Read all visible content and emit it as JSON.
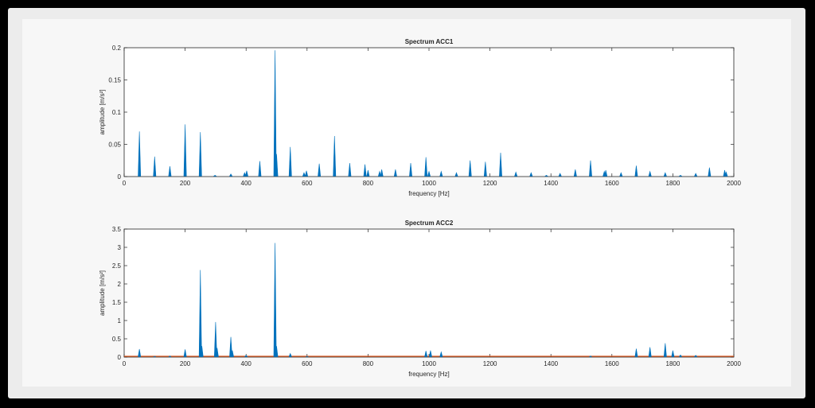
{
  "chart_data": [
    {
      "type": "line",
      "title": "Spectrum ACC1",
      "xlabel": "frequency [Hz]",
      "ylabel": "amplitude [m/s²]",
      "xlim": [
        0,
        2000
      ],
      "ylim": [
        0,
        0.2
      ],
      "xticks": [
        0,
        200,
        400,
        600,
        800,
        1000,
        1200,
        1400,
        1600,
        1800,
        2000
      ],
      "xtick_labels": [
        "0",
        "200",
        "400",
        "600",
        "800",
        "1000",
        "1200",
        "1400",
        "1600",
        "1800",
        "2000"
      ],
      "yticks": [
        0,
        0.05,
        0.1,
        0.15,
        0.2
      ],
      "ytick_labels": [
        "0",
        "0.05",
        "0.1",
        "0.15",
        "0.2"
      ],
      "grid": false,
      "series_color": "#0072bd",
      "peaks": [
        {
          "x": 50,
          "y": 0.07
        },
        {
          "x": 100,
          "y": 0.031
        },
        {
          "x": 150,
          "y": 0.016
        },
        {
          "x": 200,
          "y": 0.081
        },
        {
          "x": 250,
          "y": 0.069
        },
        {
          "x": 298,
          "y": 0.002
        },
        {
          "x": 350,
          "y": 0.004
        },
        {
          "x": 395,
          "y": 0.006
        },
        {
          "x": 402,
          "y": 0.009
        },
        {
          "x": 445,
          "y": 0.024
        },
        {
          "x": 495,
          "y": 0.196
        },
        {
          "x": 500,
          "y": 0.035
        },
        {
          "x": 545,
          "y": 0.046
        },
        {
          "x": 590,
          "y": 0.006
        },
        {
          "x": 598,
          "y": 0.009
        },
        {
          "x": 640,
          "y": 0.02
        },
        {
          "x": 690,
          "y": 0.063
        },
        {
          "x": 740,
          "y": 0.021
        },
        {
          "x": 790,
          "y": 0.019
        },
        {
          "x": 800,
          "y": 0.01
        },
        {
          "x": 838,
          "y": 0.008
        },
        {
          "x": 845,
          "y": 0.011
        },
        {
          "x": 890,
          "y": 0.011
        },
        {
          "x": 940,
          "y": 0.021
        },
        {
          "x": 990,
          "y": 0.03
        },
        {
          "x": 1000,
          "y": 0.008
        },
        {
          "x": 1040,
          "y": 0.008
        },
        {
          "x": 1090,
          "y": 0.006
        },
        {
          "x": 1135,
          "y": 0.025
        },
        {
          "x": 1185,
          "y": 0.023
        },
        {
          "x": 1235,
          "y": 0.037
        },
        {
          "x": 1285,
          "y": 0.007
        },
        {
          "x": 1335,
          "y": 0.006
        },
        {
          "x": 1385,
          "y": 0.002
        },
        {
          "x": 1430,
          "y": 0.005
        },
        {
          "x": 1480,
          "y": 0.011
        },
        {
          "x": 1530,
          "y": 0.025
        },
        {
          "x": 1575,
          "y": 0.008
        },
        {
          "x": 1580,
          "y": 0.01
        },
        {
          "x": 1630,
          "y": 0.006
        },
        {
          "x": 1680,
          "y": 0.017
        },
        {
          "x": 1725,
          "y": 0.008
        },
        {
          "x": 1775,
          "y": 0.006
        },
        {
          "x": 1825,
          "y": 0.002
        },
        {
          "x": 1875,
          "y": 0.005
        },
        {
          "x": 1920,
          "y": 0.014
        },
        {
          "x": 1970,
          "y": 0.01
        },
        {
          "x": 1975,
          "y": 0.007
        }
      ]
    },
    {
      "type": "line",
      "title": "Spectrum ACC2",
      "xlabel": "frequency [Hz]",
      "ylabel": "amplitude [m/s²]",
      "xlim": [
        0,
        2000
      ],
      "ylim": [
        0,
        3.5
      ],
      "xticks": [
        0,
        200,
        400,
        600,
        800,
        1000,
        1200,
        1400,
        1600,
        1800,
        2000
      ],
      "xtick_labels": [
        "0",
        "200",
        "400",
        "600",
        "800",
        "1000",
        "1200",
        "1400",
        "1600",
        "1800",
        "2000"
      ],
      "yticks": [
        0,
        0.5,
        1,
        1.5,
        2,
        2.5,
        3,
        3.5
      ],
      "ytick_labels": [
        "0",
        "0.5",
        "1",
        "1.5",
        "2",
        "2.5",
        "3",
        "3.5"
      ],
      "grid": false,
      "series_color": "#0072bd",
      "secondary_color": "#d95319",
      "peaks": [
        {
          "x": 50,
          "y": 0.22
        },
        {
          "x": 100,
          "y": 0.02
        },
        {
          "x": 150,
          "y": 0.03
        },
        {
          "x": 200,
          "y": 0.21
        },
        {
          "x": 250,
          "y": 2.38
        },
        {
          "x": 255,
          "y": 0.3
        },
        {
          "x": 300,
          "y": 0.96
        },
        {
          "x": 305,
          "y": 0.25
        },
        {
          "x": 350,
          "y": 0.55
        },
        {
          "x": 355,
          "y": 0.18
        },
        {
          "x": 400,
          "y": 0.05
        },
        {
          "x": 495,
          "y": 3.12
        },
        {
          "x": 500,
          "y": 0.3
        },
        {
          "x": 545,
          "y": 0.1
        },
        {
          "x": 600,
          "y": 0.02
        },
        {
          "x": 990,
          "y": 0.17
        },
        {
          "x": 1005,
          "y": 0.18
        },
        {
          "x": 1040,
          "y": 0.14
        },
        {
          "x": 1530,
          "y": 0.03
        },
        {
          "x": 1680,
          "y": 0.23
        },
        {
          "x": 1725,
          "y": 0.27
        },
        {
          "x": 1775,
          "y": 0.38
        },
        {
          "x": 1800,
          "y": 0.18
        },
        {
          "x": 1825,
          "y": 0.06
        },
        {
          "x": 1875,
          "y": 0.05
        }
      ]
    }
  ]
}
